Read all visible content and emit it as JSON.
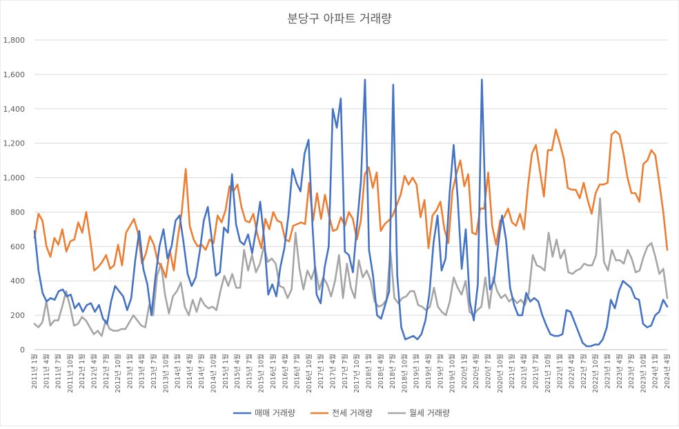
{
  "chart_data": {
    "type": "line",
    "title": "분당구 아파트 거래량",
    "xlabel": "",
    "ylabel": "",
    "ylim": [
      0,
      1800
    ],
    "yticks": [
      "0",
      "200",
      "400",
      "600",
      "800",
      "1,000",
      "1,200",
      "1,400",
      "1,600",
      "1,800"
    ],
    "ytick_values": [
      0,
      200,
      400,
      600,
      800,
      1000,
      1200,
      1400,
      1600,
      1800
    ],
    "gridlines": true,
    "legend_position": "bottom",
    "tick_labels": [
      "2011년 1월",
      "2011년 4월",
      "2011년 7월",
      "2011년 10월",
      "2012년 1월",
      "2012년 4월",
      "2012년 7월",
      "2012년 10월",
      "2013년 1월",
      "2013년 4월",
      "2013년 7월",
      "2013년 10월",
      "2014년 1월",
      "2014년 4월",
      "2014년 7월",
      "2014년 10월",
      "2015년 1월",
      "2015년 4월",
      "2015년 7월",
      "2015년 10월",
      "2016년 1월",
      "2016년 4월",
      "2016년 7월",
      "2016년 10월",
      "2017년 1월",
      "2017년 4월",
      "2017년 7월",
      "2017년 10월",
      "2018년 1월",
      "2018년 4월",
      "2018년 7월",
      "2018년 10월",
      "2019년 1월",
      "2019년 4월",
      "2019년 7월",
      "2019년 10월",
      "2020년 1월",
      "2020년 4월",
      "2020년 7월",
      "2020년 10월",
      "2021년 1월",
      "2021년 4월",
      "2021년 7월",
      "2021년 10월",
      "2022년 1월",
      "2022년 4월",
      "2022년 7월",
      "2022년 10월",
      "2023년 1월",
      "2023년 4월",
      "2023년 7월",
      "2023년 10월",
      "2024년 1월",
      "2024년 4월"
    ],
    "x_start": "2011년 1월",
    "x_end": "2024년 4월",
    "series": [
      {
        "name": "매매 거래량",
        "color": "#4472C4",
        "values": [
          690,
          460,
          330,
          280,
          300,
          290,
          340,
          350,
          310,
          320,
          240,
          270,
          220,
          260,
          270,
          220,
          260,
          180,
          150,
          280,
          370,
          340,
          310,
          230,
          300,
          520,
          690,
          470,
          380,
          200,
          420,
          600,
          700,
          530,
          600,
          750,
          780,
          620,
          440,
          370,
          420,
          570,
          750,
          830,
          640,
          430,
          450,
          710,
          680,
          1020,
          730,
          630,
          610,
          670,
          560,
          700,
          860,
          640,
          320,
          380,
          310,
          480,
          590,
          780,
          1050,
          970,
          920,
          1140,
          1220,
          710,
          320,
          270,
          480,
          600,
          1400,
          1290,
          1460,
          570,
          550,
          450,
          720,
          980,
          1570,
          580,
          430,
          200,
          180,
          260,
          340,
          1540,
          430,
          130,
          60,
          70,
          80,
          60,
          90,
          170,
          330,
          620,
          780,
          460,
          530,
          910,
          1190,
          880,
          470,
          700,
          280,
          170,
          380,
          1570,
          740,
          350,
          400,
          600,
          780,
          640,
          360,
          260,
          200,
          200,
          330,
          280,
          300,
          280,
          200,
          140,
          90,
          80,
          80,
          90,
          230,
          220,
          160,
          100,
          40,
          20,
          20,
          30,
          30,
          60,
          130,
          290,
          240,
          340,
          400,
          380,
          360,
          300,
          290,
          150,
          130,
          140,
          200,
          220,
          290,
          250
        ]
      },
      {
        "name": "전세 거래량",
        "color": "#ED7D31",
        "values": [
          650,
          790,
          750,
          600,
          540,
          650,
          610,
          700,
          570,
          630,
          640,
          740,
          680,
          800,
          640,
          460,
          480,
          510,
          550,
          470,
          490,
          610,
          490,
          680,
          720,
          760,
          680,
          500,
          560,
          660,
          610,
          510,
          480,
          420,
          580,
          460,
          650,
          800,
          1050,
          720,
          640,
          600,
          610,
          580,
          640,
          620,
          780,
          740,
          810,
          950,
          920,
          960,
          830,
          750,
          740,
          790,
          670,
          590,
          760,
          700,
          800,
          750,
          740,
          640,
          630,
          720,
          730,
          740,
          730,
          970,
          750,
          910,
          760,
          900,
          780,
          690,
          700,
          770,
          720,
          800,
          760,
          640,
          750,
          1020,
          1060,
          940,
          1030,
          690,
          730,
          750,
          780,
          840,
          900,
          1010,
          960,
          1000,
          960,
          770,
          870,
          590,
          780,
          810,
          860,
          700,
          620,
          920,
          1020,
          1100,
          950,
          1020,
          680,
          670,
          820,
          820,
          1030,
          720,
          610,
          750,
          770,
          820,
          740,
          720,
          790,
          700,
          950,
          1140,
          1190,
          1040,
          890,
          1160,
          1160,
          1280,
          1200,
          1110,
          940,
          930,
          930,
          880,
          970,
          870,
          790,
          910,
          960,
          960,
          970,
          1250,
          1270,
          1250,
          1140,
          1000,
          910,
          910,
          860,
          1080,
          1100,
          1160,
          1130,
          970,
          800,
          580
        ]
      },
      {
        "name": "월세 거래량",
        "color": "#A5A5A5",
        "values": [
          150,
          130,
          160,
          280,
          140,
          170,
          170,
          250,
          340,
          250,
          140,
          150,
          190,
          170,
          130,
          90,
          110,
          80,
          170,
          120,
          110,
          110,
          120,
          120,
          160,
          200,
          170,
          140,
          130,
          260,
          200,
          430,
          500,
          320,
          210,
          310,
          340,
          390,
          250,
          200,
          290,
          220,
          300,
          260,
          240,
          250,
          230,
          340,
          430,
          370,
          440,
          360,
          360,
          580,
          460,
          550,
          450,
          500,
          600,
          510,
          530,
          500,
          370,
          360,
          300,
          350,
          680,
          470,
          350,
          460,
          410,
          480,
          350,
          420,
          380,
          310,
          400,
          550,
          300,
          500,
          360,
          300,
          520,
          420,
          460,
          400,
          280,
          250,
          260,
          290,
          570,
          300,
          270,
          300,
          310,
          340,
          340,
          260,
          250,
          230,
          250,
          360,
          250,
          220,
          200,
          280,
          420,
          360,
          320,
          400,
          220,
          200,
          230,
          250,
          420,
          240,
          420,
          340,
          300,
          320,
          280,
          300,
          270,
          290,
          260,
          330,
          550,
          490,
          480,
          460,
          680,
          540,
          640,
          530,
          580,
          450,
          440,
          460,
          470,
          500,
          490,
          490,
          550,
          880,
          510,
          460,
          580,
          520,
          520,
          500,
          580,
          530,
          450,
          460,
          540,
          600,
          620,
          540,
          440,
          470,
          300
        ]
      }
    ]
  }
}
